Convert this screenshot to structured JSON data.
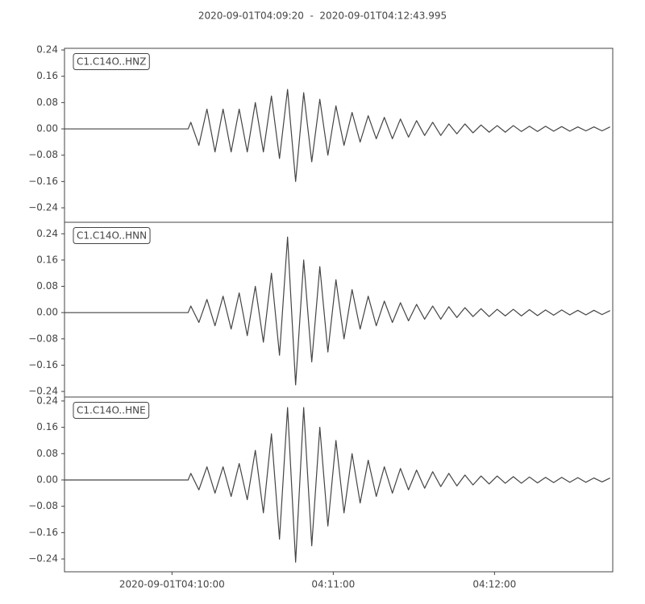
{
  "chart_data": [
    {
      "type": "line",
      "title": "2020-09-01T04:09:20  -  2020-09-01T04:12:43.995",
      "label": "C1.C14O..HNZ",
      "color": "#444444",
      "x": [
        0,
        46,
        47,
        50,
        53,
        56,
        59,
        62,
        65,
        68,
        71,
        74,
        77,
        80,
        83,
        86,
        89,
        92,
        95,
        98,
        101,
        104,
        107,
        110,
        113,
        116,
        119,
        122,
        125,
        128,
        131,
        134,
        137,
        140,
        143,
        146,
        149,
        152,
        155,
        158,
        161,
        164,
        167,
        170,
        173,
        176,
        179,
        182,
        185,
        188,
        191,
        194,
        197,
        200,
        203
      ],
      "values": [
        0,
        0,
        0.02,
        -0.05,
        0.06,
        -0.07,
        0.06,
        -0.07,
        0.06,
        -0.07,
        0.08,
        -0.07,
        0.1,
        -0.09,
        0.12,
        -0.16,
        0.11,
        -0.1,
        0.09,
        -0.08,
        0.07,
        -0.05,
        0.05,
        -0.04,
        0.04,
        -0.03,
        0.035,
        -0.03,
        0.03,
        -0.025,
        0.025,
        -0.02,
        0.02,
        -0.02,
        0.015,
        -0.015,
        0.015,
        -0.012,
        0.012,
        -0.01,
        0.01,
        -0.01,
        0.01,
        -0.008,
        0.008,
        -0.008,
        0.008,
        -0.007,
        0.007,
        -0.007,
        0.006,
        -0.006,
        0.006,
        -0.006,
        0.006
      ],
      "xlim": [
        0,
        203.995
      ],
      "ylim": [
        -0.284,
        0.245
      ],
      "yticks": [
        0.24,
        0.16,
        0.08,
        {
          "value": 0,
          "label": "0.00"
        },
        {
          "value": -0.08,
          "label": "−0.08"
        },
        {
          "value": -0.16,
          "label": "−0.16"
        },
        {
          "value": -0.24,
          "label": "−0.24"
        }
      ]
    },
    {
      "type": "line",
      "label": "C1.C14O..HNN",
      "color": "#444444",
      "x": [
        0,
        46,
        47,
        50,
        53,
        56,
        59,
        62,
        65,
        68,
        71,
        74,
        77,
        80,
        83,
        86,
        89,
        92,
        95,
        98,
        101,
        104,
        107,
        110,
        113,
        116,
        119,
        122,
        125,
        128,
        131,
        134,
        137,
        140,
        143,
        146,
        149,
        152,
        155,
        158,
        161,
        164,
        167,
        170,
        173,
        176,
        179,
        182,
        185,
        188,
        191,
        194,
        197,
        200,
        203
      ],
      "values": [
        0,
        0,
        0.02,
        -0.03,
        0.04,
        -0.04,
        0.05,
        -0.05,
        0.06,
        -0.07,
        0.08,
        -0.09,
        0.12,
        -0.13,
        0.23,
        -0.22,
        0.16,
        -0.15,
        0.14,
        -0.12,
        0.1,
        -0.08,
        0.07,
        -0.05,
        0.05,
        -0.04,
        0.035,
        -0.03,
        0.03,
        -0.025,
        0.025,
        -0.02,
        0.02,
        -0.02,
        0.018,
        -0.015,
        0.015,
        -0.012,
        0.012,
        -0.012,
        0.01,
        -0.01,
        0.01,
        -0.01,
        0.009,
        -0.009,
        0.008,
        -0.008,
        0.008,
        -0.007,
        0.007,
        -0.007,
        0.007,
        -0.006,
        0.006
      ],
      "xlim": [
        0,
        203.995
      ],
      "ylim": [
        -0.257,
        0.275
      ],
      "yticks": [
        0.24,
        0.16,
        0.08,
        {
          "value": 0,
          "label": "0.00"
        },
        {
          "value": -0.08,
          "label": "−0.08"
        },
        {
          "value": -0.16,
          "label": "−0.16"
        },
        {
          "value": -0.24,
          "label": "−0.24"
        }
      ]
    },
    {
      "type": "line",
      "label": "C1.C14O..HNE",
      "color": "#444444",
      "x": [
        0,
        46,
        47,
        50,
        53,
        56,
        59,
        62,
        65,
        68,
        71,
        74,
        77,
        80,
        83,
        86,
        89,
        92,
        95,
        98,
        101,
        104,
        107,
        110,
        113,
        116,
        119,
        122,
        125,
        128,
        131,
        134,
        137,
        140,
        143,
        146,
        149,
        152,
        155,
        158,
        161,
        164,
        167,
        170,
        173,
        176,
        179,
        182,
        185,
        188,
        191,
        194,
        197,
        200,
        203
      ],
      "values": [
        0,
        0,
        0.02,
        -0.03,
        0.04,
        -0.04,
        0.04,
        -0.05,
        0.05,
        -0.06,
        0.09,
        -0.1,
        0.14,
        -0.18,
        0.22,
        -0.25,
        0.22,
        -0.2,
        0.16,
        -0.14,
        0.12,
        -0.1,
        0.08,
        -0.07,
        0.06,
        -0.05,
        0.04,
        -0.04,
        0.035,
        -0.03,
        0.03,
        -0.025,
        0.025,
        -0.02,
        0.02,
        -0.018,
        0.015,
        -0.015,
        0.012,
        -0.012,
        0.012,
        -0.01,
        0.01,
        -0.01,
        0.009,
        -0.009,
        0.008,
        -0.008,
        0.008,
        -0.007,
        0.007,
        -0.007,
        0.006,
        -0.006,
        0.006
      ],
      "xlim": [
        0,
        203.995
      ],
      "ylim": [
        -0.279,
        0.252
      ],
      "yticks": [
        0.24,
        0.16,
        0.08,
        {
          "value": 0,
          "label": "0.00"
        },
        {
          "value": -0.08,
          "label": "−0.08"
        },
        {
          "value": -0.16,
          "label": "−0.16"
        },
        {
          "value": -0.24,
          "label": "−0.24"
        }
      ],
      "xticks": [
        {
          "value": 40,
          "label": "2020-09-01T04:10:00"
        },
        {
          "value": 100,
          "label": "04:11:00"
        },
        {
          "value": 160,
          "label": "04:12:00"
        }
      ]
    }
  ]
}
